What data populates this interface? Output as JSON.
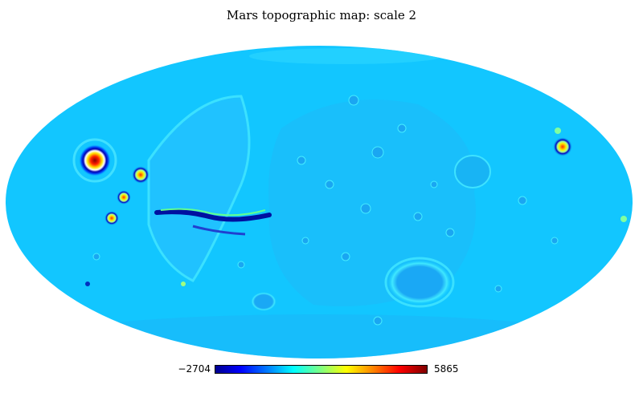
{
  "title": "Mars topographic map: scale 2",
  "projection": "mollweide",
  "colormap": "jet",
  "colorbar": {
    "min_label": "−2704",
    "max_label": "5865",
    "min_value": -2704,
    "max_value": 5865
  },
  "colors": {
    "background": "#ffffff",
    "base_field": "#12c6ff",
    "low_ridge": "#3a6cf0",
    "ring_mid": "#33ddff"
  }
}
